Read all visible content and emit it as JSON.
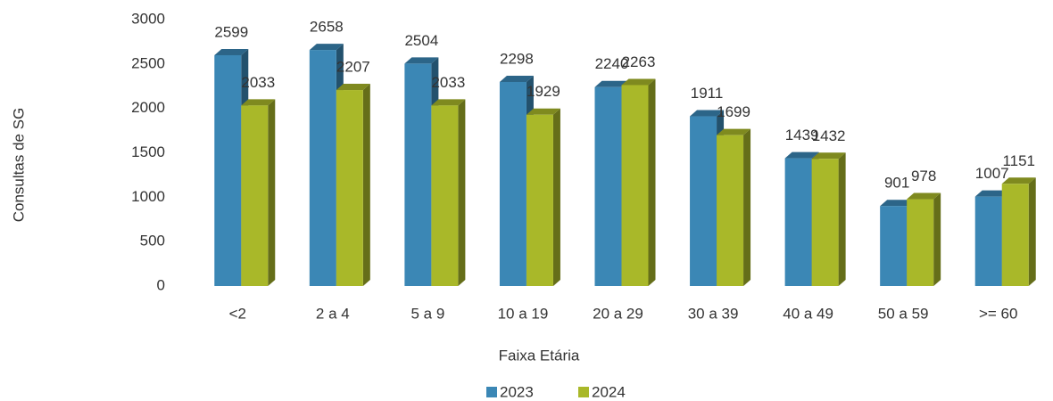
{
  "chart_data": {
    "type": "bar3d",
    "x_label": "Faixa Etária",
    "y_label": "Consultas de SG",
    "categories": [
      "<2",
      "2 a 4",
      "5 a 9",
      "10 a 19",
      "20 a 29",
      "30 a 39",
      "40 a 49",
      "50 a 59",
      ">= 60"
    ],
    "series": [
      {
        "name": "2023",
        "color": "#3b87b5",
        "values": [
          2599,
          2658,
          2504,
          2298,
          2240,
          1911,
          1439,
          901,
          1007
        ]
      },
      {
        "name": "2024",
        "color": "#a9b829",
        "values": [
          2033,
          2207,
          2033,
          1929,
          2263,
          1699,
          1432,
          978,
          1151
        ]
      }
    ],
    "ylim": [
      0,
      3000
    ],
    "yticks": [
      0,
      500,
      1000,
      1500,
      2000,
      2500,
      3000
    ],
    "legend": "bottom"
  }
}
